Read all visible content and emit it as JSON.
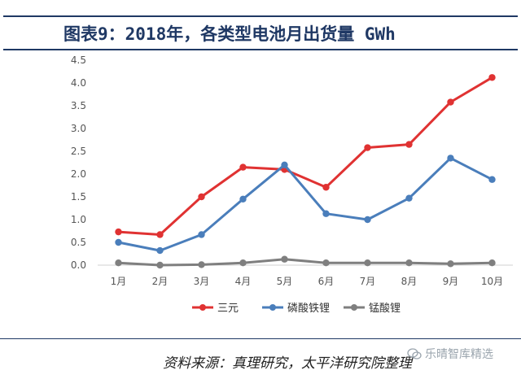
{
  "header": {
    "title": "图表9：2018年，各类型电池月出货量 GWh"
  },
  "chart_data": {
    "type": "line",
    "title": "图表9：2018年，各类型电池月出货量 GWh",
    "xlabel": "",
    "ylabel": "",
    "categories": [
      "1月",
      "2月",
      "3月",
      "4月",
      "5月",
      "6月",
      "7月",
      "8月",
      "9月",
      "10月"
    ],
    "ylim": [
      0,
      4.5
    ],
    "yticks": [
      "0.0",
      "0.5",
      "1.0",
      "1.5",
      "2.0",
      "2.5",
      "3.0",
      "3.5",
      "4.0",
      "4.5"
    ],
    "grid": false,
    "legend_position": "bottom",
    "series": [
      {
        "name": "三元",
        "color": "#e03232",
        "values": [
          0.73,
          0.67,
          1.5,
          2.15,
          2.1,
          1.71,
          2.58,
          2.65,
          3.58,
          4.12
        ]
      },
      {
        "name": "磷酸铁锂",
        "color": "#4a7ebb",
        "values": [
          0.5,
          0.32,
          0.67,
          1.45,
          2.2,
          1.13,
          1.0,
          1.47,
          2.35,
          1.88
        ]
      },
      {
        "name": "锰酸锂",
        "color": "#7f7f7f",
        "values": [
          0.05,
          0.0,
          0.01,
          0.05,
          0.13,
          0.05,
          0.05,
          0.05,
          0.03,
          0.05
        ]
      }
    ]
  },
  "footer": {
    "source": "资料来源：真理研究，太平洋研究院整理",
    "watermark": "乐晴智库精选"
  }
}
